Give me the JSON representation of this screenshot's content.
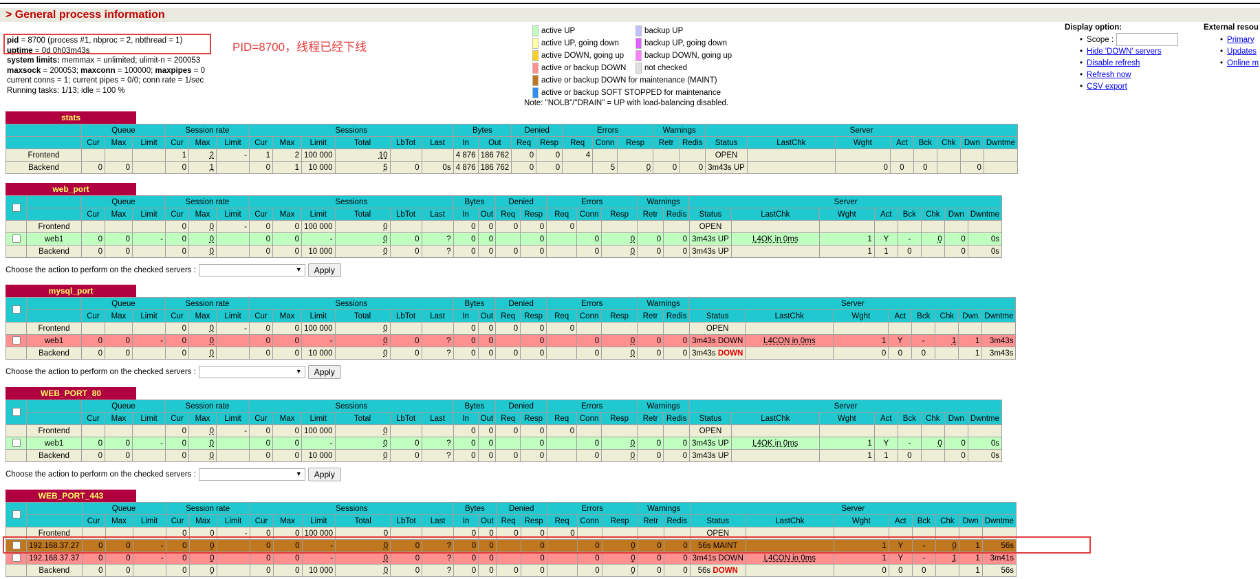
{
  "section_title": "> General process information",
  "info": {
    "pid_label": "pid",
    "pid_rest": " = 8700 (process #1, nbproc = 2, nbthread = 1)",
    "uptime_label": "uptime",
    "uptime_rest": " = 0d 0h03m43s",
    "limits_label": "system limits:",
    "limits_rest": " memmax = unlimited; ulimit-n = 200053",
    "maxsock_label": "maxsock",
    "maxsock_val": " = 200053; ",
    "maxconn_label": "maxconn",
    "maxconn_val": " = 100000; ",
    "maxpipes_label": "maxpipes",
    "maxpipes_val": " = 0",
    "conns_line": "current conns = 1; current pipes = 0/0; conn rate = 1/sec",
    "tasks_line": "Running tasks: 1/13; idle = 100 %"
  },
  "annotation": "PID=8700，线程已经下线",
  "legend": {
    "rows": [
      [
        {
          "color": "#c0ffc0",
          "label": "active UP"
        },
        {
          "color": "#c0c0ff",
          "label": "backup UP"
        }
      ],
      [
        {
          "color": "#ffffa0",
          "label": "active UP, going down"
        },
        {
          "color": "#e060ff",
          "label": "backup UP, going down"
        }
      ],
      [
        {
          "color": "#ffd020",
          "label": "active DOWN, going up"
        },
        {
          "color": "#ff80ff",
          "label": "backup DOWN, going up"
        }
      ],
      [
        {
          "color": "#ff9090",
          "label": "active or backup DOWN"
        },
        {
          "color": "#e0e0e0",
          "label": "not checked"
        }
      ],
      [
        {
          "color": "#c07820",
          "label": "active or backup DOWN for maintenance (MAINT)"
        }
      ],
      [
        {
          "color": "#3090f0",
          "label": "active or backup SOFT STOPPED for maintenance"
        }
      ]
    ],
    "note": "Note: \"NOLB\"/\"DRAIN\" = UP with load-balancing disabled."
  },
  "display": {
    "title": "Display option:",
    "scope_label": "Scope :",
    "links": [
      "Hide 'DOWN' servers",
      "Disable refresh",
      "Refresh now",
      "CSV export"
    ]
  },
  "external": {
    "title": "External resou",
    "links": [
      "Primary",
      "Updates",
      "Online m"
    ]
  },
  "action": {
    "label": "Choose the action to perform on the checked servers :",
    "apply": "Apply"
  },
  "groups": {
    "queue": "Queue",
    "rate": "Session rate",
    "sessions": "Sessions",
    "bytes": "Bytes",
    "denied": "Denied",
    "errors": "Errors",
    "warnings": "Warnings",
    "server": "Server"
  },
  "proxies": [
    {
      "name": "stats",
      "checkbox": false,
      "cols": [
        "Cur",
        "Max",
        "Limit",
        "Cur",
        "Max",
        "Limit",
        "Cur",
        "Max",
        "Limit",
        "Total",
        "LbTot",
        "Last",
        "In",
        "Out",
        "Req",
        "Resp",
        "Req",
        "Conn",
        "Resp",
        "Retr",
        "Redis",
        "Status",
        "LastChk",
        "Wght",
        "Act",
        "Bck",
        "Chk",
        "Dwn",
        "Dwntme"
      ],
      "rows": [
        {
          "kind": "frontend",
          "name": "Frontend",
          "cells": [
            "",
            "",
            "",
            "1",
            "2",
            "-",
            "1",
            "2",
            "100 000",
            "10",
            "",
            "",
            "4 876",
            "186 762",
            "0",
            "0",
            "4",
            "",
            "",
            "",
            "",
            "OPEN",
            "",
            "",
            "",
            "",
            "",
            "",
            ""
          ]
        },
        {
          "kind": "backend",
          "name": "Backend",
          "cells": [
            "0",
            "0",
            "",
            "0",
            "1",
            "",
            "0",
            "1",
            "10 000",
            "5",
            "0",
            "0s",
            "4 876",
            "186 762",
            "0",
            "0",
            "",
            "5",
            "0",
            "0",
            "0",
            "3m43s UP",
            "",
            "0",
            "0",
            "0",
            "",
            "0",
            ""
          ]
        }
      ]
    },
    {
      "name": "web_port",
      "checkbox": true,
      "cols": [
        "Cur",
        "Max",
        "Limit",
        "Cur",
        "Max",
        "Limit",
        "Cur",
        "Max",
        "Limit",
        "Total",
        "LbTot",
        "Last",
        "In",
        "Out",
        "Req",
        "Resp",
        "Req",
        "Conn",
        "Resp",
        "Retr",
        "Redis",
        "Status",
        "LastChk",
        "Wght",
        "Act",
        "Bck",
        "Chk",
        "Dwn",
        "Dwntme"
      ],
      "rows": [
        {
          "kind": "frontend",
          "name": "Frontend",
          "cells": [
            "",
            "",
            "",
            "0",
            "0",
            "-",
            "0",
            "0",
            "100 000",
            "0",
            "",
            "",
            "0",
            "0",
            "0",
            "0",
            "0",
            "",
            "",
            "",
            "",
            "OPEN",
            "",
            "",
            "",
            "",
            "",
            "",
            ""
          ]
        },
        {
          "kind": "up",
          "name": "web1",
          "cells": [
            "0",
            "0",
            "-",
            "0",
            "0",
            "",
            "0",
            "0",
            "-",
            "0",
            "0",
            "?",
            "0",
            "0",
            "",
            "0",
            "",
            "0",
            "0",
            "0",
            "0",
            "3m43s UP",
            "L4OK in 0ms",
            "1",
            "Y",
            "-",
            "0",
            "0",
            "0s"
          ]
        },
        {
          "kind": "backend",
          "name": "Backend",
          "cells": [
            "0",
            "0",
            "",
            "0",
            "0",
            "",
            "0",
            "0",
            "10 000",
            "0",
            "0",
            "?",
            "0",
            "0",
            "0",
            "0",
            "",
            "0",
            "0",
            "0",
            "0",
            "3m43s UP",
            "",
            "1",
            "1",
            "0",
            "",
            "0",
            "0s"
          ]
        }
      ]
    },
    {
      "name": "mysql_port",
      "checkbox": true,
      "cols": [
        "Cur",
        "Max",
        "Limit",
        "Cur",
        "Max",
        "Limit",
        "Cur",
        "Max",
        "Limit",
        "Total",
        "LbTot",
        "Last",
        "In",
        "Out",
        "Req",
        "Resp",
        "Req",
        "Conn",
        "Resp",
        "Retr",
        "Redis",
        "Status",
        "LastChk",
        "Wght",
        "Act",
        "Bck",
        "Chk",
        "Dwn",
        "Dwntme"
      ],
      "rows": [
        {
          "kind": "frontend",
          "name": "Frontend",
          "cells": [
            "",
            "",
            "",
            "0",
            "0",
            "-",
            "0",
            "0",
            "100 000",
            "0",
            "",
            "",
            "0",
            "0",
            "0",
            "0",
            "0",
            "",
            "",
            "",
            "",
            "OPEN",
            "",
            "",
            "",
            "",
            "",
            "",
            ""
          ]
        },
        {
          "kind": "down",
          "name": "web1",
          "cells": [
            "0",
            "0",
            "-",
            "0",
            "0",
            "",
            "0",
            "0",
            "-",
            "0",
            "0",
            "?",
            "0",
            "0",
            "",
            "0",
            "",
            "0",
            "0",
            "0",
            "0",
            "3m43s DOWN",
            "L4CON in 0ms",
            "1",
            "Y",
            "-",
            "1",
            "1",
            "3m43s"
          ]
        },
        {
          "kind": "backend",
          "name": "Backend",
          "cells": [
            "0",
            "0",
            "",
            "0",
            "0",
            "",
            "0",
            "0",
            "10 000",
            "0",
            "0",
            "?",
            "0",
            "0",
            "0",
            "0",
            "",
            "0",
            "0",
            "0",
            "0",
            "3m43s DOWN",
            "",
            "0",
            "0",
            "0",
            "",
            "1",
            "3m43s"
          ]
        }
      ]
    },
    {
      "name": "WEB_PORT_80",
      "checkbox": true,
      "cols": [
        "Cur",
        "Max",
        "Limit",
        "Cur",
        "Max",
        "Limit",
        "Cur",
        "Max",
        "Limit",
        "Total",
        "LbTot",
        "Last",
        "In",
        "Out",
        "Req",
        "Resp",
        "Req",
        "Conn",
        "Resp",
        "Retr",
        "Redis",
        "Status",
        "LastChk",
        "Wght",
        "Act",
        "Bck",
        "Chk",
        "Dwn",
        "Dwntme"
      ],
      "rows": [
        {
          "kind": "frontend",
          "name": "Frontend",
          "cells": [
            "",
            "",
            "",
            "0",
            "0",
            "-",
            "0",
            "0",
            "100 000",
            "0",
            "",
            "",
            "0",
            "0",
            "0",
            "0",
            "0",
            "",
            "",
            "",
            "",
            "OPEN",
            "",
            "",
            "",
            "",
            "",
            "",
            ""
          ]
        },
        {
          "kind": "up",
          "name": "web1",
          "cells": [
            "0",
            "0",
            "-",
            "0",
            "0",
            "",
            "0",
            "0",
            "-",
            "0",
            "0",
            "?",
            "0",
            "0",
            "",
            "0",
            "",
            "0",
            "0",
            "0",
            "0",
            "3m43s UP",
            "L4OK in 0ms",
            "1",
            "Y",
            "-",
            "0",
            "0",
            "0s"
          ]
        },
        {
          "kind": "backend",
          "name": "Backend",
          "cells": [
            "0",
            "0",
            "",
            "0",
            "0",
            "",
            "0",
            "0",
            "10 000",
            "0",
            "0",
            "?",
            "0",
            "0",
            "0",
            "0",
            "",
            "0",
            "0",
            "0",
            "0",
            "3m43s UP",
            "",
            "1",
            "1",
            "0",
            "",
            "0",
            "0s"
          ]
        }
      ]
    },
    {
      "name": "WEB_PORT_443",
      "checkbox": true,
      "cols": [
        "Cur",
        "Max",
        "Limit",
        "Cur",
        "Max",
        "Limit",
        "Cur",
        "Max",
        "Limit",
        "Total",
        "LbTot",
        "Last",
        "In",
        "Out",
        "Req",
        "Resp",
        "Req",
        "Conn",
        "Resp",
        "Retr",
        "Redis",
        "Status",
        "LastChk",
        "Wght",
        "Act",
        "Bck",
        "Chk",
        "Dwn",
        "Dwntme"
      ],
      "rows": [
        {
          "kind": "frontend",
          "name": "Frontend",
          "cells": [
            "",
            "",
            "",
            "0",
            "0",
            "-",
            "0",
            "0",
            "100 000",
            "0",
            "",
            "",
            "0",
            "0",
            "0",
            "0",
            "0",
            "",
            "",
            "",
            "",
            "OPEN",
            "",
            "",
            "",
            "",
            "",
            "",
            ""
          ]
        },
        {
          "kind": "maint",
          "name": "192.168.37.27",
          "cells": [
            "0",
            "0",
            "-",
            "0",
            "0",
            "",
            "0",
            "0",
            "-",
            "0",
            "0",
            "?",
            "0",
            "0",
            "",
            "0",
            "",
            "0",
            "0",
            "0",
            "0",
            "56s MAINT",
            "",
            "1",
            "Y",
            "-",
            "0",
            "1",
            "56s"
          ]
        },
        {
          "kind": "down",
          "name": "192.168.37.37",
          "cells": [
            "0",
            "0",
            "-",
            "0",
            "0",
            "",
            "0",
            "0",
            "-",
            "0",
            "0",
            "?",
            "0",
            "0",
            "",
            "0",
            "",
            "0",
            "0",
            "0",
            "0",
            "3m41s DOWN",
            "L4CON in 0ms",
            "1",
            "Y",
            "-",
            "1",
            "1",
            "3m41s"
          ]
        },
        {
          "kind": "backend",
          "name": "Backend",
          "cells": [
            "0",
            "0",
            "",
            "0",
            "0",
            "",
            "0",
            "0",
            "10 000",
            "0",
            "0",
            "?",
            "0",
            "0",
            "0",
            "0",
            "",
            "0",
            "0",
            "0",
            "0",
            "56s DOWN",
            "",
            "0",
            "0",
            "0",
            "",
            "1",
            "56s"
          ]
        }
      ]
    }
  ]
}
